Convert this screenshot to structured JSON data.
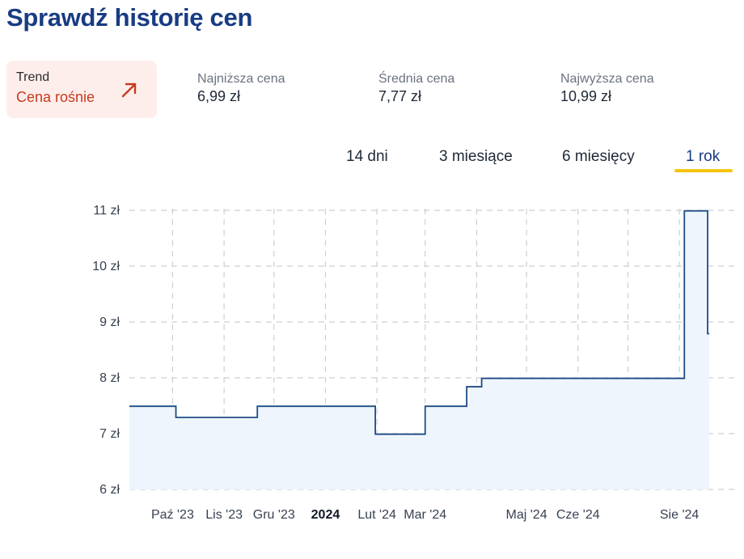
{
  "page": {
    "title": "Sprawdź historię cen"
  },
  "trend": {
    "label": "Trend",
    "value": "Cena rośnie",
    "icon": "arrow-up-right-icon",
    "color": "#c73b1e",
    "background": "#fdeeec"
  },
  "stats": {
    "min": {
      "label": "Najniższa cena",
      "value": "6,99 zł"
    },
    "avg": {
      "label": "Średnia cena",
      "value": "7,77 zł"
    },
    "max": {
      "label": "Najwyższa cena",
      "value": "10,99 zł"
    }
  },
  "periods": {
    "items": [
      "14 dni",
      "3 miesiące",
      "6 miesięcy",
      "1 rok"
    ],
    "active": "1 rok",
    "accent": "#f5c40f"
  },
  "colors": {
    "title": "#183c83",
    "line": "#1e4d86",
    "fill": "#eef5fd",
    "grid": "#cfcfcf"
  },
  "chart_data": {
    "type": "area",
    "xlim": [
      "2023-09-05",
      "2024-09-05"
    ],
    "ylim": [
      6,
      11
    ],
    "y_ticks": [
      {
        "value": 6,
        "label": "6 zł"
      },
      {
        "value": 7,
        "label": "7 zł"
      },
      {
        "value": 8,
        "label": "8 zł"
      },
      {
        "value": 9,
        "label": "9 zł"
      },
      {
        "value": 10,
        "label": "10 zł"
      },
      {
        "value": 11,
        "label": "11 zł"
      }
    ],
    "x_ticks": [
      {
        "date": "2023-10-01",
        "label": "Paź '23",
        "bold": false
      },
      {
        "date": "2023-11-01",
        "label": "Lis '23",
        "bold": false
      },
      {
        "date": "2023-12-01",
        "label": "Gru '23",
        "bold": false
      },
      {
        "date": "2024-01-01",
        "label": "2024",
        "bold": true
      },
      {
        "date": "2024-02-01",
        "label": "Lut '24",
        "bold": false
      },
      {
        "date": "2024-03-01",
        "label": "Mar '24",
        "bold": false
      },
      {
        "date": "2024-05-01",
        "label": "Maj '24",
        "bold": false
      },
      {
        "date": "2024-06-01",
        "label": "Cze '24",
        "bold": false
      },
      {
        "date": "2024-08-01",
        "label": "Sie '24",
        "bold": false
      }
    ],
    "extra_grid_dates": [
      "2024-04-01",
      "2024-07-01"
    ],
    "grid": true,
    "series": [
      {
        "step": true,
        "points": [
          {
            "x": "2023-09-05",
            "y": 7.49
          },
          {
            "x": "2023-10-03",
            "y": 7.29
          },
          {
            "x": "2023-11-21",
            "y": 7.49
          },
          {
            "x": "2024-01-31",
            "y": 6.99
          },
          {
            "x": "2024-03-01",
            "y": 7.49
          },
          {
            "x": "2024-03-26",
            "y": 7.84
          },
          {
            "x": "2024-04-04",
            "y": 7.99
          },
          {
            "x": "2024-08-04",
            "y": 10.99
          },
          {
            "x": "2024-08-18",
            "y": 8.79
          },
          {
            "x": "2024-08-19",
            "y": 8.79
          }
        ]
      }
    ]
  }
}
